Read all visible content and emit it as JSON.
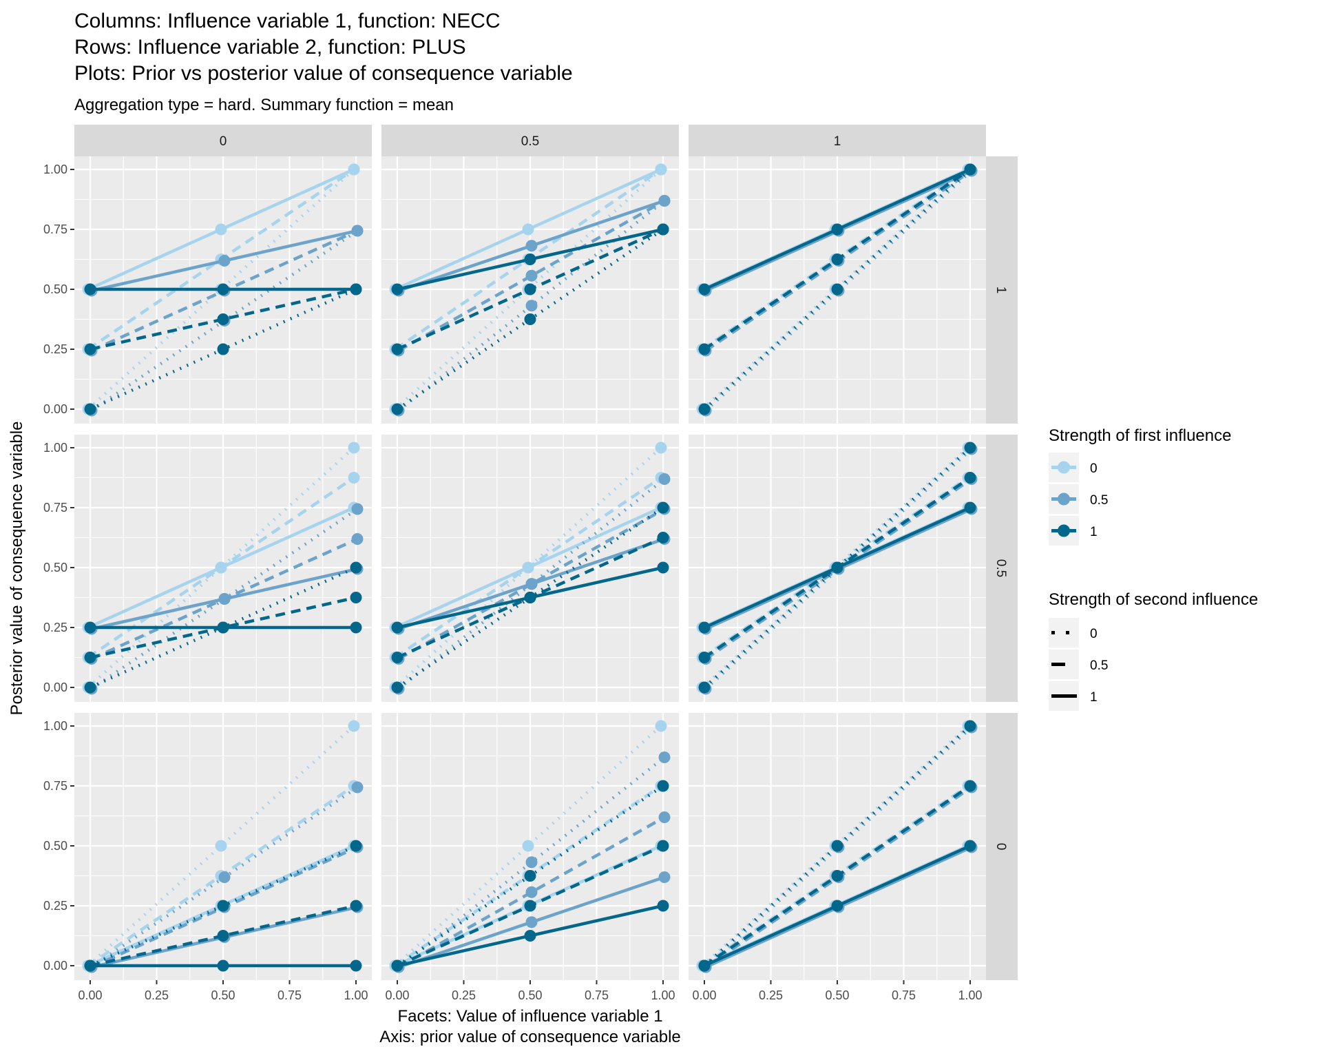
{
  "titles": {
    "line1": "Columns: Influence variable 1, function: NECC",
    "line2": "Rows: Influence variable 2, function: PLUS",
    "line3": "Plots: Prior vs posterior value of consequence variable",
    "subtitle": "Aggregation type = hard. Summary function = mean"
  },
  "axes": {
    "xlabel_line1": "Facets: Value of influence variable 1",
    "xlabel_line2": "Axis: prior value of consequence variable",
    "ylabel": "Posterior value of consequence variable"
  },
  "legend": {
    "color_title": "Strength of first influence",
    "color_items": [
      {
        "label": "0",
        "color": "#a6d3ee"
      },
      {
        "label": "0.5",
        "color": "#6ba3cb"
      },
      {
        "label": "1",
        "color": "#03668b"
      }
    ],
    "linetype_title": "Strength of second influence",
    "linetype_items": [
      {
        "label": "0",
        "linetype": "dotted"
      },
      {
        "label": "0.5",
        "linetype": "dashed"
      },
      {
        "label": "1",
        "linetype": "solid"
      }
    ]
  },
  "chart_data": {
    "type": "line",
    "facet_columns": [
      "0",
      "0.5",
      "1"
    ],
    "facet_rows": [
      "1",
      "0.5",
      "0"
    ],
    "x": [
      0,
      0.5,
      1
    ],
    "xticks": [
      "0.00",
      "0.25",
      "0.50",
      "0.75",
      "1.00"
    ],
    "yticks": [
      "0.00",
      "0.25",
      "0.50",
      "0.75",
      "1.00"
    ],
    "xlim": [
      0,
      1
    ],
    "ylim": [
      0,
      1
    ],
    "grid": true,
    "legend_position": "right",
    "panels": [
      {
        "col": "0",
        "row": "1",
        "series": [
          {
            "s1": "0",
            "s2": "0",
            "values": [
              0,
              0.5,
              1
            ]
          },
          {
            "s1": "0",
            "s2": "0.5",
            "values": [
              0.25,
              0.625,
              1
            ]
          },
          {
            "s1": "0",
            "s2": "1",
            "values": [
              0.5,
              0.75,
              1
            ]
          },
          {
            "s1": "0.5",
            "s2": "0",
            "values": [
              0,
              0.375,
              0.75
            ]
          },
          {
            "s1": "0.5",
            "s2": "0.5",
            "values": [
              0.25,
              0.5,
              0.75
            ]
          },
          {
            "s1": "0.5",
            "s2": "1",
            "values": [
              0.5,
              0.625,
              0.75
            ]
          },
          {
            "s1": "1",
            "s2": "0",
            "values": [
              0,
              0.25,
              0.5
            ]
          },
          {
            "s1": "1",
            "s2": "0.5",
            "values": [
              0.25,
              0.375,
              0.5
            ]
          },
          {
            "s1": "1",
            "s2": "1",
            "values": [
              0.5,
              0.5,
              0.5
            ]
          }
        ]
      },
      {
        "col": "0.5",
        "row": "1",
        "series": [
          {
            "s1": "0",
            "s2": "0",
            "values": [
              0,
              0.5,
              1
            ]
          },
          {
            "s1": "0",
            "s2": "0.5",
            "values": [
              0.25,
              0.625,
              1
            ]
          },
          {
            "s1": "0",
            "s2": "1",
            "values": [
              0.5,
              0.75,
              1
            ]
          },
          {
            "s1": "0.5",
            "s2": "0",
            "values": [
              0,
              0.4375,
              0.875
            ]
          },
          {
            "s1": "0.5",
            "s2": "0.5",
            "values": [
              0.25,
              0.5625,
              0.875
            ]
          },
          {
            "s1": "0.5",
            "s2": "1",
            "values": [
              0.5,
              0.6875,
              0.875
            ]
          },
          {
            "s1": "1",
            "s2": "0",
            "values": [
              0,
              0.375,
              0.75
            ]
          },
          {
            "s1": "1",
            "s2": "0.5",
            "values": [
              0.25,
              0.5,
              0.75
            ]
          },
          {
            "s1": "1",
            "s2": "1",
            "values": [
              0.5,
              0.625,
              0.75
            ]
          }
        ]
      },
      {
        "col": "1",
        "row": "1",
        "series": [
          {
            "s1": "0",
            "s2": "0",
            "values": [
              0,
              0.5,
              1
            ]
          },
          {
            "s1": "0",
            "s2": "0.5",
            "values": [
              0.25,
              0.625,
              1
            ]
          },
          {
            "s1": "0",
            "s2": "1",
            "values": [
              0.5,
              0.75,
              1
            ]
          },
          {
            "s1": "0.5",
            "s2": "0",
            "values": [
              0,
              0.5,
              1
            ]
          },
          {
            "s1": "0.5",
            "s2": "0.5",
            "values": [
              0.25,
              0.625,
              1
            ]
          },
          {
            "s1": "0.5",
            "s2": "1",
            "values": [
              0.5,
              0.75,
              1
            ]
          },
          {
            "s1": "1",
            "s2": "0",
            "values": [
              0,
              0.5,
              1
            ]
          },
          {
            "s1": "1",
            "s2": "0.5",
            "values": [
              0.25,
              0.625,
              1
            ]
          },
          {
            "s1": "1",
            "s2": "1",
            "values": [
              0.5,
              0.75,
              1
            ]
          }
        ]
      },
      {
        "col": "0",
        "row": "0.5",
        "series": [
          {
            "s1": "0",
            "s2": "0",
            "values": [
              0,
              0.5,
              1
            ]
          },
          {
            "s1": "0",
            "s2": "0.5",
            "values": [
              0.125,
              0.5,
              0.875
            ]
          },
          {
            "s1": "0",
            "s2": "1",
            "values": [
              0.25,
              0.5,
              0.75
            ]
          },
          {
            "s1": "0.5",
            "s2": "0",
            "values": [
              0,
              0.375,
              0.75
            ]
          },
          {
            "s1": "0.5",
            "s2": "0.5",
            "values": [
              0.125,
              0.375,
              0.625
            ]
          },
          {
            "s1": "0.5",
            "s2": "1",
            "values": [
              0.25,
              0.375,
              0.5
            ]
          },
          {
            "s1": "1",
            "s2": "0",
            "values": [
              0,
              0.25,
              0.5
            ]
          },
          {
            "s1": "1",
            "s2": "0.5",
            "values": [
              0.125,
              0.25,
              0.375
            ]
          },
          {
            "s1": "1",
            "s2": "1",
            "values": [
              0.25,
              0.25,
              0.25
            ]
          }
        ]
      },
      {
        "col": "0.5",
        "row": "0.5",
        "series": [
          {
            "s1": "0",
            "s2": "0",
            "values": [
              0,
              0.5,
              1
            ]
          },
          {
            "s1": "0",
            "s2": "0.5",
            "values": [
              0.125,
              0.5,
              0.875
            ]
          },
          {
            "s1": "0",
            "s2": "1",
            "values": [
              0.25,
              0.5,
              0.75
            ]
          },
          {
            "s1": "0.5",
            "s2": "0",
            "values": [
              0,
              0.4375,
              0.875
            ]
          },
          {
            "s1": "0.5",
            "s2": "0.5",
            "values": [
              0.125,
              0.4375,
              0.75
            ]
          },
          {
            "s1": "0.5",
            "s2": "1",
            "values": [
              0.25,
              0.4375,
              0.625
            ]
          },
          {
            "s1": "1",
            "s2": "0",
            "values": [
              0,
              0.375,
              0.75
            ]
          },
          {
            "s1": "1",
            "s2": "0.5",
            "values": [
              0.125,
              0.375,
              0.625
            ]
          },
          {
            "s1": "1",
            "s2": "1",
            "values": [
              0.25,
              0.375,
              0.5
            ]
          }
        ]
      },
      {
        "col": "1",
        "row": "0.5",
        "series": [
          {
            "s1": "0",
            "s2": "0",
            "values": [
              0,
              0.5,
              1
            ]
          },
          {
            "s1": "0",
            "s2": "0.5",
            "values": [
              0.125,
              0.5,
              0.875
            ]
          },
          {
            "s1": "0",
            "s2": "1",
            "values": [
              0.25,
              0.5,
              0.75
            ]
          },
          {
            "s1": "0.5",
            "s2": "0",
            "values": [
              0,
              0.5,
              1
            ]
          },
          {
            "s1": "0.5",
            "s2": "0.5",
            "values": [
              0.125,
              0.5,
              0.875
            ]
          },
          {
            "s1": "0.5",
            "s2": "1",
            "values": [
              0.25,
              0.5,
              0.75
            ]
          },
          {
            "s1": "1",
            "s2": "0",
            "values": [
              0,
              0.5,
              1
            ]
          },
          {
            "s1": "1",
            "s2": "0.5",
            "values": [
              0.125,
              0.5,
              0.875
            ]
          },
          {
            "s1": "1",
            "s2": "1",
            "values": [
              0.25,
              0.5,
              0.75
            ]
          }
        ]
      },
      {
        "col": "0",
        "row": "0",
        "series": [
          {
            "s1": "0",
            "s2": "0",
            "values": [
              0,
              0.5,
              1
            ]
          },
          {
            "s1": "0",
            "s2": "0.5",
            "values": [
              0,
              0.375,
              0.75
            ]
          },
          {
            "s1": "0",
            "s2": "1",
            "values": [
              0,
              0.25,
              0.5
            ]
          },
          {
            "s1": "0.5",
            "s2": "0",
            "values": [
              0,
              0.375,
              0.75
            ]
          },
          {
            "s1": "0.5",
            "s2": "0.5",
            "values": [
              0,
              0.25,
              0.5
            ]
          },
          {
            "s1": "0.5",
            "s2": "1",
            "values": [
              0,
              0.125,
              0.25
            ]
          },
          {
            "s1": "1",
            "s2": "0",
            "values": [
              0,
              0.25,
              0.5
            ]
          },
          {
            "s1": "1",
            "s2": "0.5",
            "values": [
              0,
              0.125,
              0.25
            ]
          },
          {
            "s1": "1",
            "s2": "1",
            "values": [
              0,
              0,
              0
            ]
          }
        ]
      },
      {
        "col": "0.5",
        "row": "0",
        "series": [
          {
            "s1": "0",
            "s2": "0",
            "values": [
              0,
              0.5,
              1
            ]
          },
          {
            "s1": "0",
            "s2": "0.5",
            "values": [
              0,
              0.375,
              0.75
            ]
          },
          {
            "s1": "0",
            "s2": "1",
            "values": [
              0,
              0.25,
              0.5
            ]
          },
          {
            "s1": "0.5",
            "s2": "0",
            "values": [
              0,
              0.4375,
              0.875
            ]
          },
          {
            "s1": "0.5",
            "s2": "0.5",
            "values": [
              0,
              0.3125,
              0.625
            ]
          },
          {
            "s1": "0.5",
            "s2": "1",
            "values": [
              0,
              0.1875,
              0.375
            ]
          },
          {
            "s1": "1",
            "s2": "0",
            "values": [
              0,
              0.375,
              0.75
            ]
          },
          {
            "s1": "1",
            "s2": "0.5",
            "values": [
              0,
              0.25,
              0.5
            ]
          },
          {
            "s1": "1",
            "s2": "1",
            "values": [
              0,
              0.125,
              0.25
            ]
          }
        ]
      },
      {
        "col": "1",
        "row": "0",
        "series": [
          {
            "s1": "0",
            "s2": "0",
            "values": [
              0,
              0.5,
              1
            ]
          },
          {
            "s1": "0",
            "s2": "0.5",
            "values": [
              0,
              0.375,
              0.75
            ]
          },
          {
            "s1": "0",
            "s2": "1",
            "values": [
              0,
              0.25,
              0.5
            ]
          },
          {
            "s1": "0.5",
            "s2": "0",
            "values": [
              0,
              0.5,
              1
            ]
          },
          {
            "s1": "0.5",
            "s2": "0.5",
            "values": [
              0,
              0.375,
              0.75
            ]
          },
          {
            "s1": "0.5",
            "s2": "1",
            "values": [
              0,
              0.25,
              0.5
            ]
          },
          {
            "s1": "1",
            "s2": "0",
            "values": [
              0,
              0.5,
              1
            ]
          },
          {
            "s1": "1",
            "s2": "0.5",
            "values": [
              0,
              0.375,
              0.75
            ]
          },
          {
            "s1": "1",
            "s2": "1",
            "values": [
              0,
              0.25,
              0.5
            ]
          }
        ]
      }
    ]
  }
}
